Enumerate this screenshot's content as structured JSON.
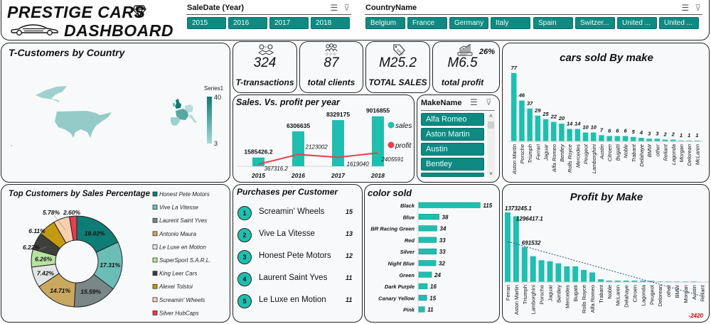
{
  "header": {
    "title_line1": "PRESTIGE CARS",
    "title_line2": "DASHBOARD",
    "diamond_icon": "diamond-icon",
    "car_icon": "car-icon"
  },
  "year_slicer": {
    "title": "SaleDate (Year)",
    "icons": [
      "multi-select-icon",
      "clear-filter-icon"
    ],
    "items": [
      "2015",
      "2016",
      "2017",
      "2018"
    ]
  },
  "country_slicer": {
    "title": "CountryName",
    "icons": [
      "multi-select-icon",
      "clear-filter-icon"
    ],
    "items": [
      "Belgium",
      "France",
      "Germany",
      "Italy",
      "Spain",
      "Switzer...",
      "United ...",
      "United ..."
    ]
  },
  "map_panel": {
    "title": "T-Customers by Country",
    "legend_title": "Series1",
    "legend_max": "40",
    "legend_min": "3",
    "colors": {
      "low": "#a8d8d6",
      "high": "#0e7a72"
    }
  },
  "kpis": [
    {
      "icon": "handshake-icon",
      "value": "324",
      "label": "T-transactions"
    },
    {
      "icon": "clients-icon",
      "value": "87",
      "label": "total clients"
    },
    {
      "icon": "sale-tag-icon",
      "value": "M25.2",
      "label": "TOTAL SALES"
    },
    {
      "icon": "profit-chart-icon",
      "value": "M6.5",
      "label": "total profit",
      "badge": "26%"
    }
  ],
  "make_slicer": {
    "title": "MakeName",
    "items": [
      "Alfa Romeo",
      "Aston Martin",
      "Austin",
      "Bentley"
    ]
  },
  "purchases": {
    "title": "Purchases per Customer",
    "items": [
      {
        "rank": "1",
        "name": "Screamin' Wheels",
        "count": "15"
      },
      {
        "rank": "2",
        "name": "Vive La Vitesse",
        "count": "13"
      },
      {
        "rank": "3",
        "name": "Honest Pete Motors",
        "count": "12"
      },
      {
        "rank": "4",
        "name": "Laurent Saint Yves",
        "count": "11"
      },
      {
        "rank": "5",
        "name": "Le Luxe en Motion",
        "count": "11"
      }
    ]
  },
  "colors": {
    "accent": "#1fbfb0",
    "slicer": "#0f8a82",
    "profit_line": "#e8404f",
    "negative": "#cc0000"
  },
  "chart_data": [
    {
      "id": "sales_profit",
      "type": "bar",
      "title": "Sales. Vs. profit per year",
      "categories": [
        "2015",
        "2016",
        "2017",
        "2018"
      ],
      "series": [
        {
          "name": "sales",
          "type": "bar",
          "values": [
            1585426.2,
            6306635,
            8329175,
            9016855
          ],
          "labels": [
            "1585426.2",
            "6306635",
            "8329175",
            "9016855"
          ]
        },
        {
          "name": "profit",
          "type": "line",
          "values": [
            367316.2,
            2123002,
            1619040,
            2405591
          ],
          "labels": [
            "367316.2",
            "2123002",
            "1619040",
            "2405591"
          ]
        }
      ],
      "legend": [
        "sales",
        "profit"
      ],
      "ylim": [
        0,
        10000000
      ]
    },
    {
      "id": "cars_by_make",
      "type": "bar",
      "title": "cars sold By make",
      "categories": [
        "Aston Martin",
        "Porsche",
        "Triumph",
        "Ferrari",
        "Jaguar",
        "Alfa Romeo",
        "Bentley",
        "Rolls Royce",
        "Mercedes",
        "Peugeot",
        "Lamborghini",
        "Austin",
        "Citroen",
        "Bugatti",
        "Noble",
        "Trabant",
        "Delahaye",
        "BMW",
        "other",
        "Reliant",
        "Lagonda",
        "Morgan",
        "Delorean",
        "McLaren"
      ],
      "values": [
        77,
        46,
        37,
        29,
        25,
        22,
        20,
        14,
        14,
        10,
        10,
        7,
        6,
        6,
        6,
        5,
        4,
        3,
        3,
        2,
        2,
        1,
        1,
        1
      ],
      "ylim": [
        0,
        80
      ]
    },
    {
      "id": "top_customers",
      "type": "pie",
      "title": "Top Customers by Sales Percentage",
      "labels": [
        "Honest Pete Motors",
        "Vive La Vitesse",
        "Laurent Saint Yves",
        "Antonio Maura",
        "Le Luxe en Motion",
        "SuperSport S.A.R.L.",
        "King Leer Cars",
        "Alexei Tolstoi",
        "Screamin' Wheels",
        "Silver HubCaps"
      ],
      "values": [
        18.02,
        17.31,
        15.59,
        14.71,
        7.42,
        6.26,
        6.22,
        6.11,
        5.78,
        2.6
      ],
      "value_labels": [
        "18.02%",
        "17.31%",
        "15.59%",
        "14.71%",
        "7.42%",
        "6.26%",
        "6.22%",
        "6.11%",
        "5.78%",
        "2.60%"
      ],
      "colors": [
        "#0e7d76",
        "#6cbdb5",
        "#7b8686",
        "#c9a860",
        "#e3e6e6",
        "#b6e3a0",
        "#3e3e3b",
        "#c49a10",
        "#f9cfae",
        "#e83a50"
      ],
      "donut": true,
      "legend": "right"
    },
    {
      "id": "color_sold",
      "type": "bar",
      "orientation": "horizontal",
      "title": "color sold",
      "categories": [
        "Black",
        "Blue",
        "BR Racing Green",
        "Red",
        "Silver",
        "Night Blue",
        "Green",
        "Dark Purple",
        "Canary Yellow",
        "Pink"
      ],
      "values": [
        115,
        38,
        34,
        33,
        33,
        32,
        24,
        16,
        15,
        11
      ],
      "xlim": [
        0,
        120
      ]
    },
    {
      "id": "profit_by_make",
      "type": "bar",
      "title": "Profit by Make",
      "categories": [
        "Ferrari",
        "Aston Martin",
        "Triumph",
        "Lamborghini",
        "Porsche",
        "Jaguar",
        "Bentley",
        "Mercedes",
        "Bugatti",
        "Rolls Royce",
        "Alfa Romeo",
        "Trabant",
        "Noble",
        "McLaren",
        "Delahaye",
        "Citroen",
        "Lagonda",
        "Peugeot",
        "Delorean",
        "other",
        "BMW",
        "Morgan",
        "Austin",
        "Reliant"
      ],
      "values": [
        1373245.1,
        1296417.1,
        691532,
        510000,
        430000,
        410000,
        370000,
        310000,
        310000,
        240000,
        190000,
        55000,
        30000,
        30000,
        30000,
        30000,
        30000,
        25000,
        12000,
        5000,
        4000,
        3000,
        2000,
        -2420
      ],
      "data_labels": {
        "Ferrari": "1373245.1",
        "Aston Martin": "1296417.1",
        "Triumph": "691532",
        "Reliant": "-2420"
      },
      "trendline": "linear",
      "ylim": [
        -50000,
        1400000
      ]
    }
  ]
}
